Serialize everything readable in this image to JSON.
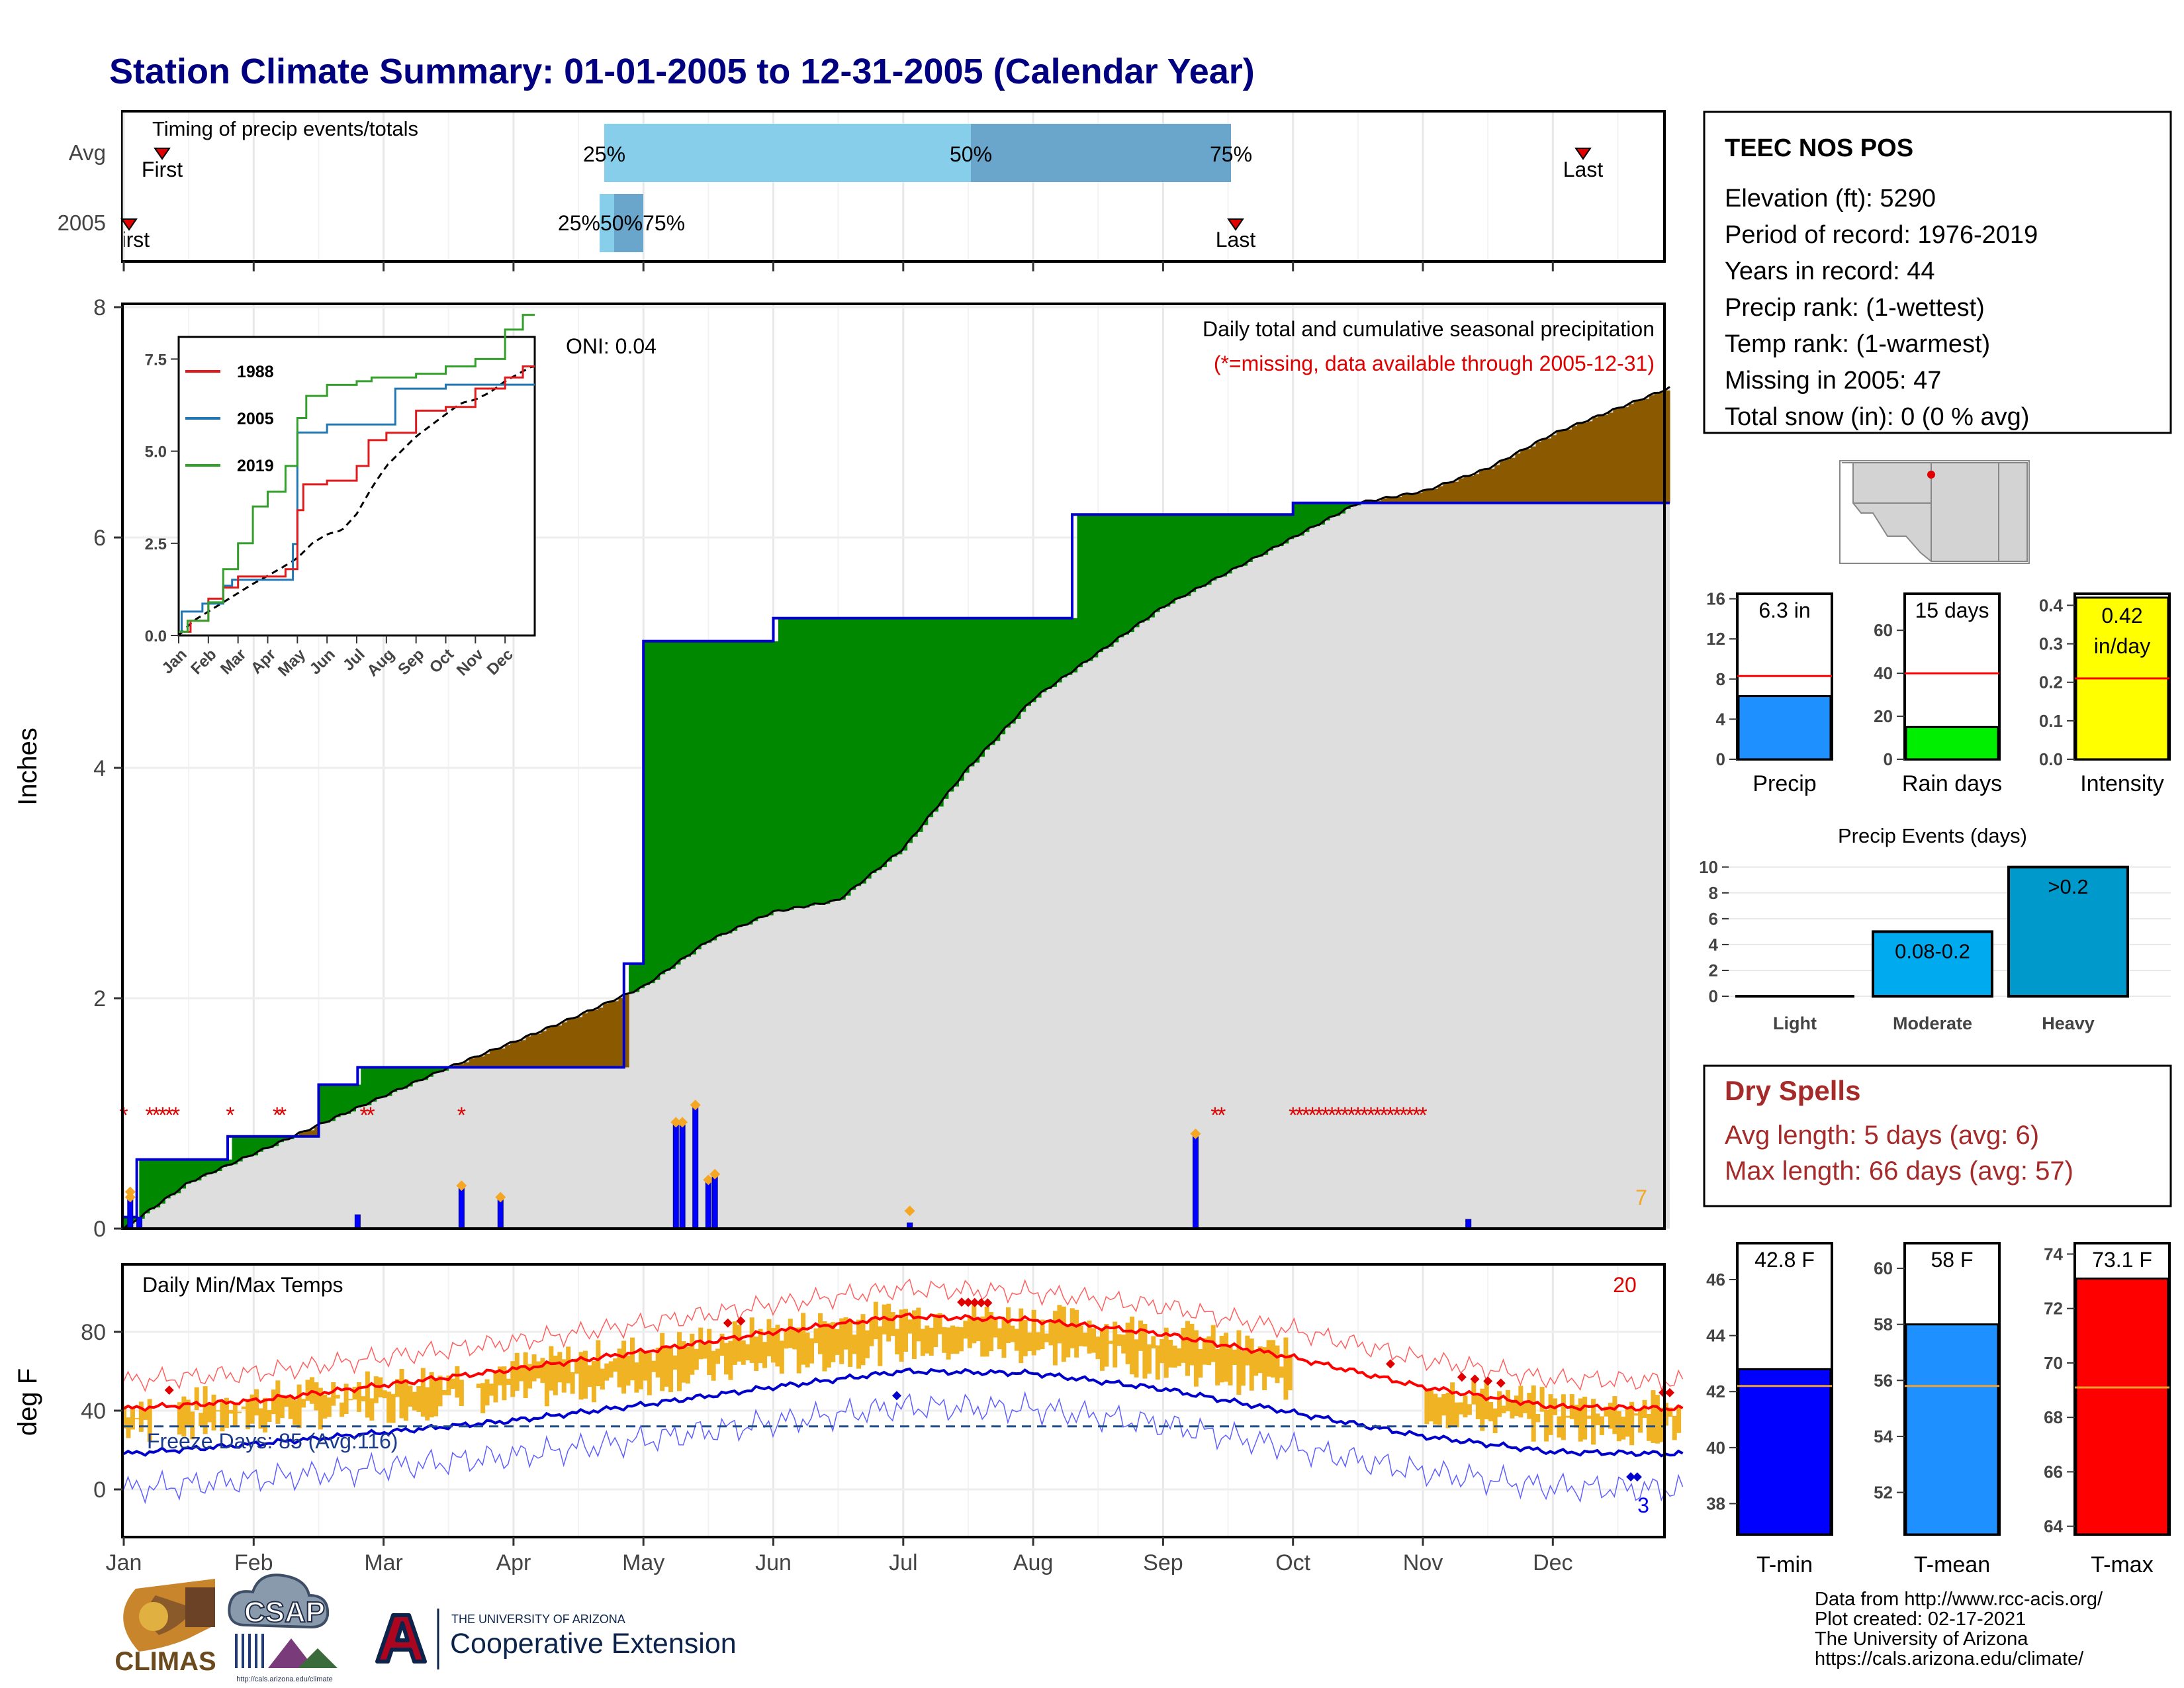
{
  "title": "Station Climate Summary: 01-01-2005 to 12-31-2005 (Calendar Year)",
  "months": [
    "Jan",
    "Feb",
    "Mar",
    "Apr",
    "May",
    "Jun",
    "Jul",
    "Aug",
    "Sep",
    "Oct",
    "Nov",
    "Dec"
  ],
  "timing": {
    "title": "Timing of precip events/totals",
    "row_labels": [
      "Avg",
      "2005"
    ],
    "avg": {
      "first_label": "First",
      "last_label": "Last",
      "p25": "25%",
      "p50": "50%",
      "p75": "75%"
    },
    "year": {
      "first_label": "First",
      "last_label": "Last",
      "p_labels": "25%50%75%"
    }
  },
  "precip": {
    "ylabel": "Inches",
    "ticks": [
      "0",
      "2",
      "4",
      "6",
      "8"
    ],
    "title": "Daily total and cumulative seasonal precipitation",
    "note": "(*=missing, data available through 2005-12-31)",
    "oni": "ONI: 0.04",
    "corner_count": "7"
  },
  "inset": {
    "ticks": [
      "0.0",
      "2.5",
      "5.0",
      "7.5"
    ],
    "legend": [
      "1988",
      "2005",
      "2019"
    ],
    "colors": {
      "1988": "#e31a1c",
      "2005": "#1f78b4",
      "2019": "#33a02c"
    }
  },
  "temps": {
    "ylabel": "deg F",
    "title": "Daily Min/Max Temps",
    "ticks": [
      "0",
      "40",
      "80"
    ],
    "hot_count": "20",
    "cold_count": "3",
    "freeze_label": "Freeze Days: 85 (Avg:116)"
  },
  "station": {
    "name": "TEEC NOS POS",
    "lines": [
      "Elevation (ft): 5290",
      "Period of record: 1976-2019",
      "Years in record: 44",
      "Precip rank:  (1-wettest)",
      "Temp rank:  (1-warmest)",
      "Missing in 2005: 47",
      "Total snow (in): 0 (0 % avg)"
    ]
  },
  "mini_bars": {
    "precip": {
      "label": "Precip",
      "value_label": "6.3 in",
      "ticks": [
        "0",
        "4",
        "8",
        "12",
        "16"
      ],
      "color": "#1e90ff"
    },
    "rain_days": {
      "label": "Rain days",
      "value_label": "15 days",
      "ticks": [
        "0",
        "20",
        "40",
        "60"
      ],
      "color": "#00ee00"
    },
    "intensity": {
      "label": "Intensity",
      "value_label_1": "0.42",
      "value_label_2": "in/day",
      "ticks": [
        "0.0",
        "0.1",
        "0.2",
        "0.3",
        "0.4"
      ],
      "color": "#ffff00"
    }
  },
  "events": {
    "title": "Precip Events (days)",
    "ticks": [
      "0",
      "2",
      "4",
      "6",
      "8",
      "10"
    ],
    "cats": [
      "Light",
      "Moderate",
      "Heavy"
    ],
    "bar_labels": [
      "0.08-0.2",
      ">0.2"
    ]
  },
  "dry_spells": {
    "title": "Dry Spells",
    "avg": "Avg length: 5 days (avg: 6)",
    "max": "Max length: 66 days (avg: 57)"
  },
  "temp_bars": {
    "tmin": {
      "label": "T-min",
      "value_label": "42.8 F",
      "ticks": [
        "38",
        "40",
        "42",
        "44",
        "46"
      ],
      "color": "#0000ff"
    },
    "tmean": {
      "label": "T-mean",
      "value_label": "58 F",
      "ticks": [
        "52",
        "54",
        "56",
        "58",
        "60"
      ],
      "color": "#1e90ff"
    },
    "tmax": {
      "label": "T-max",
      "value_label": "73.1 F",
      "ticks": [
        "64",
        "66",
        "68",
        "70",
        "72",
        "74"
      ],
      "color": "#ff0000"
    }
  },
  "footer": {
    "lines": [
      "Data from http://www.rcc-acis.org/",
      "Plot created: 02-17-2021",
      "The University of Arizona",
      "https://cals.arizona.edu/climate/"
    ],
    "logo_climas": "CLIMAS",
    "logo_csap": "CSAP",
    "logo_csap_url": "http://cals.arizona.edu/climate",
    "ua_small": "THE UNIVERSITY OF ARIZONA",
    "ua_big": "Cooperative Extension"
  },
  "chart_data": [
    {
      "type": "line",
      "name": "cumulative-precip-2005",
      "x_months": [
        1,
        1.1,
        1.3,
        1.8,
        2.5,
        2.8,
        3.0,
        4.0,
        4.85,
        5.0,
        5.2,
        6.0,
        7.0,
        8.0,
        8.3,
        9.0,
        10.0,
        11.0,
        12.0
      ],
      "y": [
        0.1,
        0.6,
        0.6,
        0.8,
        1.25,
        1.4,
        1.4,
        1.4,
        2.3,
        5.1,
        5.1,
        5.3,
        5.3,
        5.3,
        6.2,
        6.2,
        6.3,
        6.3,
        6.3
      ],
      "ylim": [
        0,
        8
      ]
    },
    {
      "type": "line",
      "name": "avg-cumulative-precip",
      "x_months": [
        1,
        1.5,
        2,
        2.5,
        3,
        3.5,
        4,
        4.5,
        5,
        5.5,
        6,
        6.5,
        7,
        7.5,
        8,
        8.5,
        9,
        9.5,
        10,
        10.5,
        11,
        11.5,
        12,
        12.9
      ],
      "y": [
        0.0,
        0.4,
        0.65,
        0.9,
        1.15,
        1.4,
        1.62,
        1.85,
        2.1,
        2.5,
        2.75,
        2.85,
        3.3,
        4.0,
        4.6,
        5.0,
        5.4,
        5.7,
        6.0,
        6.3,
        6.4,
        6.6,
        6.9,
        7.3
      ]
    },
    {
      "type": "bar",
      "name": "daily-precip-2005",
      "x_months": [
        1.05,
        1.12,
        2.8,
        3.6,
        3.9,
        5.25,
        5.3,
        5.4,
        5.5,
        5.55,
        7.05,
        9.25,
        11.35
      ],
      "y": [
        0.25,
        0.1,
        0.12,
        0.35,
        0.25,
        0.9,
        0.9,
        1.05,
        0.4,
        0.45,
        0.05,
        0.8,
        0.08
      ]
    },
    {
      "type": "line",
      "name": "temp-normals",
      "x_months": [
        1,
        2,
        3,
        4,
        5,
        6,
        7,
        8,
        9,
        10,
        11,
        12,
        13
      ],
      "tmax_avg": [
        41,
        45,
        53,
        61,
        70,
        80,
        88,
        86,
        79,
        67,
        52,
        42,
        41
      ],
      "tmin_avg": [
        18,
        23,
        29,
        35,
        43,
        52,
        60,
        59,
        51,
        39,
        27,
        19,
        18
      ],
      "ylim": [
        -25,
        110
      ]
    }
  ]
}
